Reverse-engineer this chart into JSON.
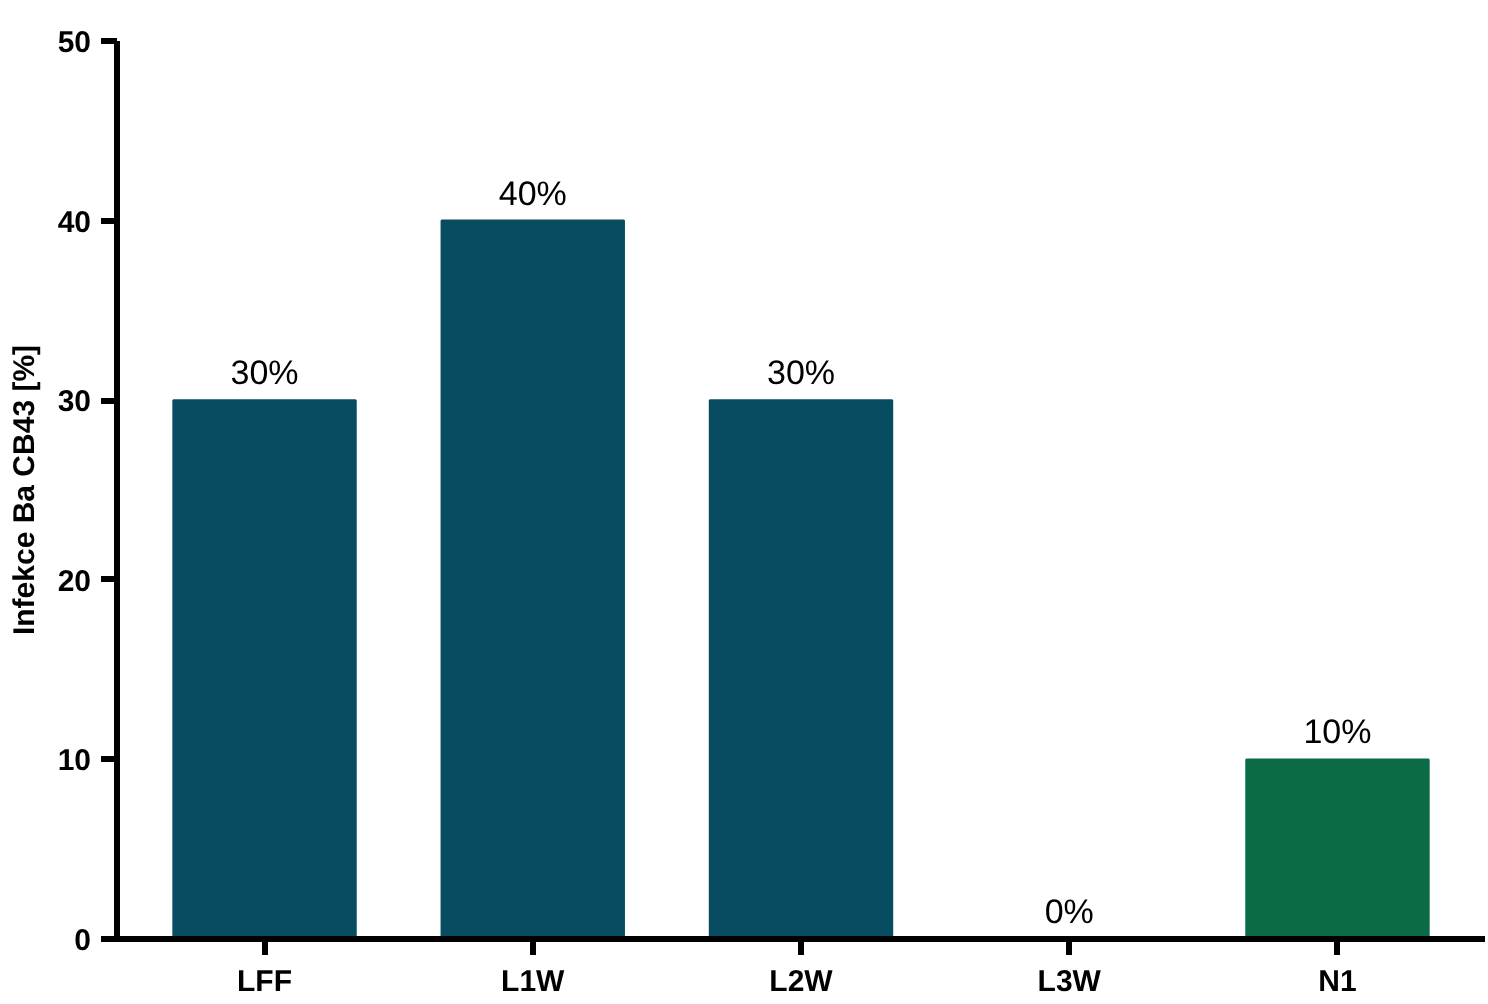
{
  "chart_data": {
    "type": "bar",
    "ylabel": "Infekce Ba CB43 [%]",
    "categories": [
      "LFF",
      "L1W",
      "L2W",
      "L3W",
      "N1"
    ],
    "values": [
      30,
      40,
      30,
      0,
      10
    ],
    "colors": [
      "#084c61",
      "#084c61",
      "#084c61",
      "#084c61",
      "#0a6b45"
    ],
    "value_labels": [
      "30%",
      "40%",
      "30%",
      "0%",
      "10%"
    ],
    "ylim": [
      0,
      50
    ],
    "yticks": [
      0,
      10,
      20,
      30,
      40,
      50
    ],
    "grid": false
  }
}
